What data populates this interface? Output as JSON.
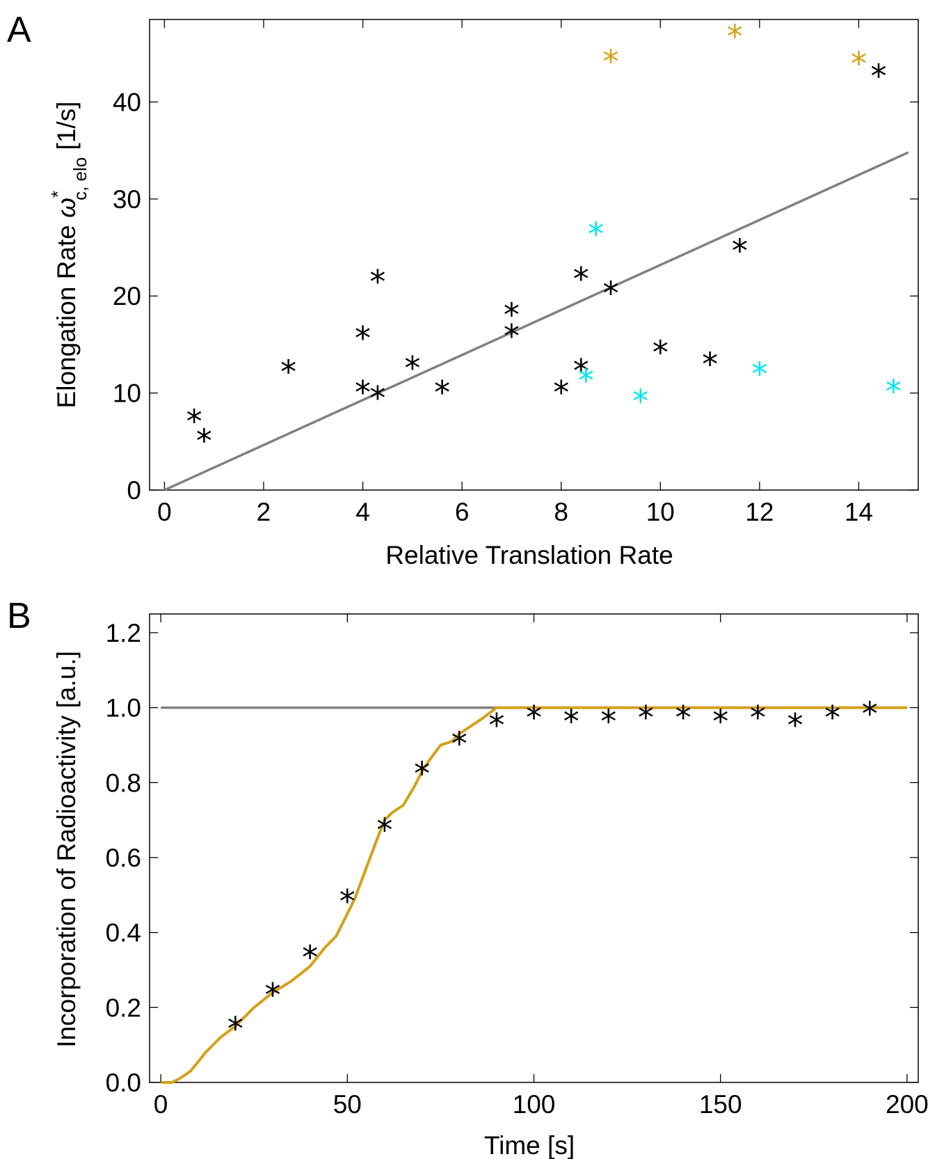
{
  "chart_data": [
    {
      "panel_label": "A",
      "type": "scatter",
      "xlabel": "Relative Translation Rate",
      "ylabel": {
        "main": "Elongation Rate ",
        "symbol": "ω",
        "superscript": "*",
        "subscript": "c, elo",
        "unit": " [1/s]"
      },
      "xlim": [
        -0.3,
        15.2
      ],
      "ylim": [
        0,
        48.5
      ],
      "xticks": [
        0,
        2,
        4,
        6,
        8,
        10,
        12,
        14
      ],
      "yticks": [
        0,
        10,
        20,
        30,
        40
      ],
      "grid": false,
      "colors": {
        "black": "#000000",
        "cyan": "#00e5ee",
        "gold": "#d4a017",
        "fit": "#808080"
      },
      "fit_line": {
        "x": [
          0,
          15
        ],
        "y": [
          0,
          34.8
        ]
      },
      "series": [
        {
          "color_key": "black",
          "points": [
            [
              0.6,
              7.7
            ],
            [
              0.8,
              5.7
            ],
            [
              2.5,
              12.8
            ],
            [
              4.0,
              16.3
            ],
            [
              4.0,
              10.7
            ],
            [
              4.3,
              22.1
            ],
            [
              4.3,
              10.1
            ],
            [
              5.0,
              13.2
            ],
            [
              5.6,
              10.7
            ],
            [
              7.0,
              18.7
            ],
            [
              7.0,
              16.5
            ],
            [
              8.0,
              10.7
            ],
            [
              8.4,
              22.4
            ],
            [
              8.4,
              12.9
            ],
            [
              9.0,
              20.9
            ],
            [
              10.0,
              14.8
            ],
            [
              11.0,
              13.6
            ],
            [
              11.6,
              25.3
            ],
            [
              14.4,
              43.3
            ]
          ]
        },
        {
          "color_key": "cyan",
          "points": [
            [
              8.5,
              11.9
            ],
            [
              8.7,
              27.0
            ],
            [
              9.6,
              9.8
            ],
            [
              12.0,
              12.6
            ],
            [
              14.7,
              10.8
            ]
          ]
        },
        {
          "color_key": "gold",
          "points": [
            [
              9.0,
              44.8
            ],
            [
              11.5,
              47.4
            ],
            [
              14.0,
              44.6
            ]
          ]
        }
      ]
    },
    {
      "panel_label": "B",
      "type": "line",
      "xlabel": "Time [s]",
      "ylabel": "Incorporation of Radioactivity [a.u.]",
      "xlim": [
        -3,
        203
      ],
      "ylim": [
        0,
        1.25
      ],
      "xticks": [
        0,
        50,
        100,
        150,
        200
      ],
      "yticks": [
        "0.0",
        "0.2",
        "0.4",
        "0.6",
        "0.8",
        "1.0",
        "1.2"
      ],
      "grid": false,
      "colors": {
        "data": "#000000",
        "model": "#d4a017",
        "reference": "#808080"
      },
      "reference_line": {
        "x": [
          0,
          90
        ],
        "y": [
          1.0,
          1.0
        ]
      },
      "model_curve": {
        "x": [
          0,
          3,
          5,
          8,
          12,
          16,
          20,
          25,
          30,
          35,
          40,
          44,
          47,
          50,
          52,
          55,
          58,
          60,
          62,
          65,
          68,
          70,
          72,
          75,
          78,
          80,
          83,
          86,
          90,
          100,
          120,
          150,
          180,
          200
        ],
        "y": [
          0,
          0,
          0.01,
          0.03,
          0.08,
          0.12,
          0.15,
          0.2,
          0.24,
          0.27,
          0.31,
          0.36,
          0.39,
          0.45,
          0.49,
          0.57,
          0.65,
          0.7,
          0.72,
          0.74,
          0.79,
          0.83,
          0.86,
          0.9,
          0.91,
          0.93,
          0.95,
          0.97,
          1.0,
          1.0,
          1.0,
          1.0,
          1.0,
          1.0
        ]
      },
      "data_points": {
        "x": [
          20,
          30,
          40,
          50,
          60,
          70,
          80,
          90,
          100,
          110,
          120,
          130,
          140,
          150,
          160,
          170,
          180,
          190
        ],
        "y": [
          0.16,
          0.25,
          0.35,
          0.5,
          0.69,
          0.84,
          0.92,
          0.97,
          0.99,
          0.98,
          0.98,
          0.99,
          0.99,
          0.98,
          0.99,
          0.97,
          0.99,
          1.0
        ]
      }
    }
  ]
}
